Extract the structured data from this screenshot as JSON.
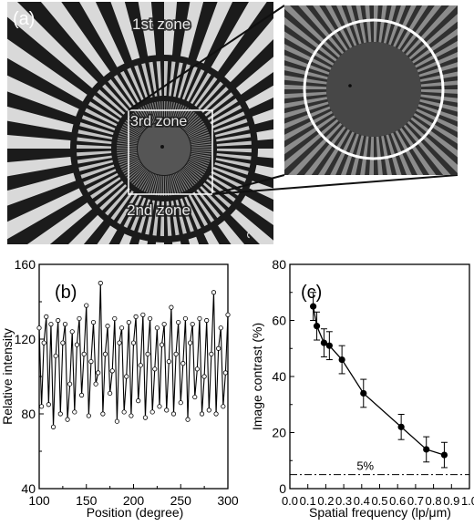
{
  "panel_a": {
    "label": "(a)",
    "zones": [
      "1st zone",
      "2nd zone",
      "3rd zone"
    ],
    "corner_digit": "2"
  },
  "chart_data": [
    {
      "type": "line",
      "panel_label": "(b)",
      "xlabel": "Position (degree)",
      "ylabel": "Relative intensity",
      "xlim": [
        100,
        300
      ],
      "ylim": [
        40,
        160
      ],
      "xticks": [
        100,
        150,
        200,
        250,
        300
      ],
      "yticks": [
        40,
        80,
        120,
        160
      ],
      "marker": "open-circle",
      "line_color": "#000000",
      "series": [
        {
          "x_start": 100,
          "x_step": 2.5,
          "values": [
            126,
            84,
            118,
            132,
            85,
            128,
            73,
            111,
            130,
            80,
            118,
            128,
            77,
            96,
            124,
            81,
            117,
            131,
            90,
            112,
            138,
            79,
            108,
            129,
            96,
            102,
            150,
            80,
            112,
            127,
            91,
            103,
            131,
            76,
            118,
            126,
            81,
            100,
            129,
            79,
            118,
            132,
            87,
            106,
            133,
            78,
            112,
            131,
            81,
            104,
            126,
            84,
            117,
            128,
            82,
            108,
            137,
            80,
            112,
            129,
            86,
            107,
            131,
            77,
            118,
            128,
            89,
            104,
            131,
            80,
            100,
            130,
            82,
            112,
            145,
            80,
            115,
            126,
            84,
            102,
            133
          ]
        }
      ]
    },
    {
      "type": "scatter",
      "panel_label": "(c)",
      "xlabel": "Spatial frequency (lp/μm)",
      "ylabel": "Image contrast (%)",
      "xlim": [
        0.0,
        1.0
      ],
      "ylim": [
        0,
        80
      ],
      "xticks": [
        0.0,
        0.1,
        0.2,
        0.3,
        0.4,
        0.5,
        0.6,
        0.7,
        0.8,
        0.9,
        1.0
      ],
      "yticks": [
        0,
        20,
        40,
        60,
        80
      ],
      "connect_points": true,
      "error_bars": true,
      "points": [
        {
          "x": 0.13,
          "y": 65,
          "err": 5
        },
        {
          "x": 0.15,
          "y": 58,
          "err": 5
        },
        {
          "x": 0.19,
          "y": 52,
          "err": 5
        },
        {
          "x": 0.22,
          "y": 51,
          "err": 5
        },
        {
          "x": 0.29,
          "y": 46,
          "err": 5
        },
        {
          "x": 0.41,
          "y": 34,
          "err": 5
        },
        {
          "x": 0.62,
          "y": 22,
          "err": 4.5
        },
        {
          "x": 0.76,
          "y": 14,
          "err": 4.5
        },
        {
          "x": 0.86,
          "y": 12,
          "err": 4.5
        }
      ],
      "reference_line": {
        "y": 5,
        "label": "5%",
        "style": "dash-dot"
      }
    }
  ]
}
